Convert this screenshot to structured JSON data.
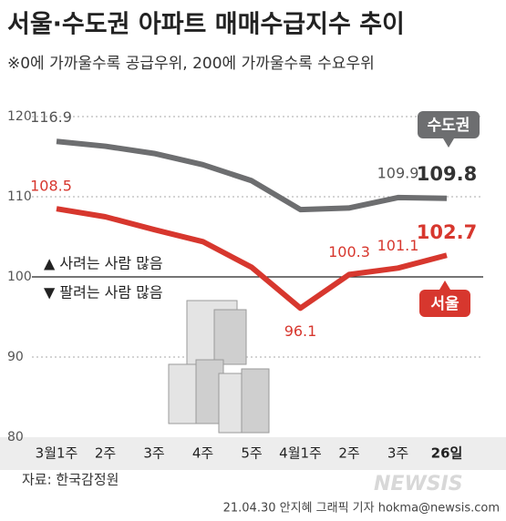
{
  "chart_data": {
    "type": "line",
    "title": "서울·수도권 아파트 매매수급지수 추이",
    "subtitle": "※0에 가까울수록 공급우위, 200에 가까울수록 수요우위",
    "categories": [
      "3월1주",
      "2주",
      "3주",
      "4주",
      "5주",
      "4월1주",
      "2주",
      "3주",
      "26일"
    ],
    "series": [
      {
        "name": "수도권",
        "color": "#6d6e70",
        "values": [
          116.9,
          116.3,
          115.4,
          114.0,
          112.0,
          108.4,
          108.6,
          109.9,
          109.8
        ],
        "value_labels": [
          "116.9",
          null,
          null,
          null,
          null,
          null,
          null,
          "109.9",
          "109.8"
        ]
      },
      {
        "name": "서울",
        "color": "#d7372e",
        "values": [
          108.5,
          107.5,
          105.9,
          104.4,
          101.2,
          96.1,
          100.3,
          101.1,
          102.7
        ],
        "value_labels": [
          "108.5",
          null,
          null,
          null,
          null,
          "96.1",
          "100.3",
          "101.1",
          "102.7"
        ]
      }
    ],
    "ylim": [
      80,
      120
    ],
    "yticks": [
      80,
      90,
      100,
      110,
      120
    ],
    "grid": true,
    "annotations": [
      "▲ 사려는 사람 많음",
      "▼ 팔려는 사람 많음"
    ],
    "source": "자료: 한국감정원",
    "credit": "21.04.30 안지혜 그래픽 기자 hokma@newsis.com",
    "watermark": "NEWSIS"
  }
}
